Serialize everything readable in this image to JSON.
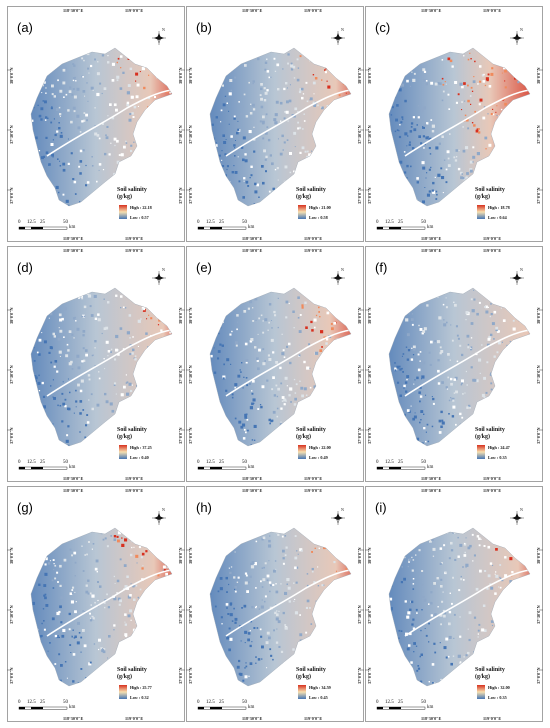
{
  "colors": {
    "high": "#d7301f",
    "mid": "#f6e0b0",
    "low": "#4575b4",
    "land": "#c9d3dc"
  },
  "axis_labels": {
    "lon": [
      "118°30'0\"E",
      "119°0'0\"E"
    ],
    "lat": [
      "38°0'0\"N",
      "37°30'0\"N",
      "37°0'0\"N"
    ]
  },
  "north_label": "N",
  "north_icon": "compass-rose-icon",
  "legend": {
    "title_line1": "Soil salinity",
    "title_line2": "(g/kg)"
  },
  "scale_bar": {
    "ticks": [
      "0",
      "12.5",
      "25",
      "50"
    ],
    "unit": "km"
  },
  "panels": [
    {
      "label": "(a)",
      "high": "High : 22.18",
      "low": "Low : 0.57",
      "high_value": 22.18,
      "low_value": 0.57,
      "red_level": 0.55
    },
    {
      "label": "(b)",
      "high": "High : 21.00",
      "low": "Low : 0.58",
      "high_value": 21.0,
      "low_value": 0.58,
      "red_level": 0.45
    },
    {
      "label": "(c)",
      "high": "High : 18.78",
      "low": "Low : 0.64",
      "high_value": 18.78,
      "low_value": 0.64,
      "red_level": 0.85
    },
    {
      "label": "(d)",
      "high": "High : 37.25",
      "low": "Low : 0.40",
      "high_value": 37.25,
      "low_value": 0.4,
      "red_level": 0.35
    },
    {
      "label": "(e)",
      "high": "High : 22.00",
      "low": "Low : 0.49",
      "high_value": 22.0,
      "low_value": 0.49,
      "red_level": 0.55
    },
    {
      "label": "(f)",
      "high": "High : 24.47",
      "low": "Low : 0.35",
      "high_value": 24.47,
      "low_value": 0.35,
      "red_level": 0.25
    },
    {
      "label": "(g)",
      "high": "High : 25.77",
      "low": "Low : 0.32",
      "high_value": 25.77,
      "low_value": 0.32,
      "red_level": 0.5
    },
    {
      "label": "(h)",
      "high": "High : 34.59",
      "low": "Low : 0.45",
      "high_value": 34.59,
      "low_value": 0.45,
      "red_level": 0.45
    },
    {
      "label": "(i)",
      "high": "High : 32.00",
      "low": "Low : 0.35",
      "high_value": 32.0,
      "low_value": 0.35,
      "red_level": 0.4
    }
  ]
}
